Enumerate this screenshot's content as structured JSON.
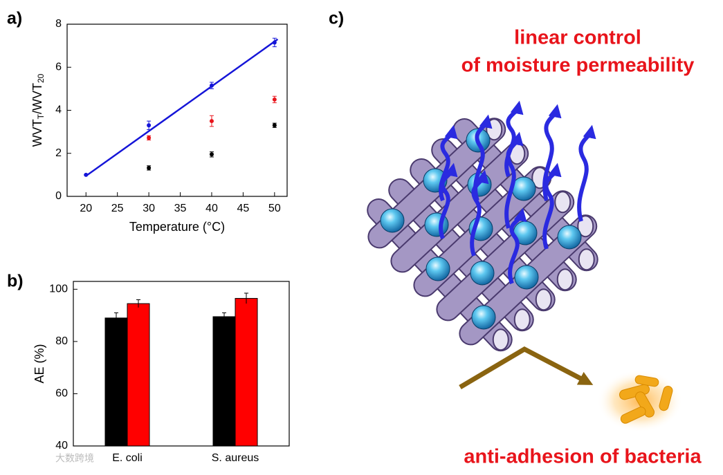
{
  "panels": [
    "a)",
    "b)",
    "c)"
  ],
  "chart_data": [
    {
      "type": "scatter",
      "xlabel": "Temperature (°C)",
      "ylabel": [
        "WVT",
        "T",
        "/WVT",
        "20"
      ],
      "xlim": [
        17,
        52
      ],
      "xticks": [
        20,
        25,
        30,
        35,
        40,
        45,
        50
      ],
      "ylim": [
        0,
        8
      ],
      "yticks": [
        0,
        2,
        4,
        6,
        8
      ],
      "series": [
        {
          "color": "#000000",
          "x": [
            30,
            40,
            50
          ],
          "values": [
            1.32,
            1.95,
            3.3
          ],
          "errors": [
            0.1,
            0.12,
            0.1
          ]
        },
        {
          "color": "#e8141b",
          "x": [
            30,
            40,
            50
          ],
          "values": [
            2.72,
            3.5,
            4.5
          ],
          "errors": [
            0.1,
            0.25,
            0.15
          ]
        },
        {
          "color": "#1515d8",
          "x": [
            20,
            30,
            40,
            50
          ],
          "values": [
            1,
            3.3,
            5.15,
            7.15
          ],
          "errors": [
            0,
            0.2,
            0.15,
            0.2
          ]
        }
      ],
      "fit": {
        "color": "#1515d8",
        "x": [
          20,
          50.5
        ],
        "values": [
          0.95,
          7.3
        ]
      }
    },
    {
      "type": "bar",
      "ylabel": "AE (%)",
      "categories": [
        "E. coli",
        "S. aureus"
      ],
      "ylim": [
        40,
        103
      ],
      "yticks": [
        40,
        60,
        80,
        100
      ],
      "series": [
        {
          "color": "#000000",
          "values": [
            89,
            89.5
          ],
          "errors": [
            2,
            1.5
          ]
        },
        {
          "color": "#ff0000",
          "values": [
            94.5,
            96.5
          ],
          "errors": [
            1.5,
            2
          ]
        }
      ]
    }
  ],
  "diagram": {
    "top_text": [
      "linear control",
      "of moisture permeability"
    ],
    "bottom_text": "anti-adhesion of bacteria"
  },
  "watermark": "大数跨境"
}
